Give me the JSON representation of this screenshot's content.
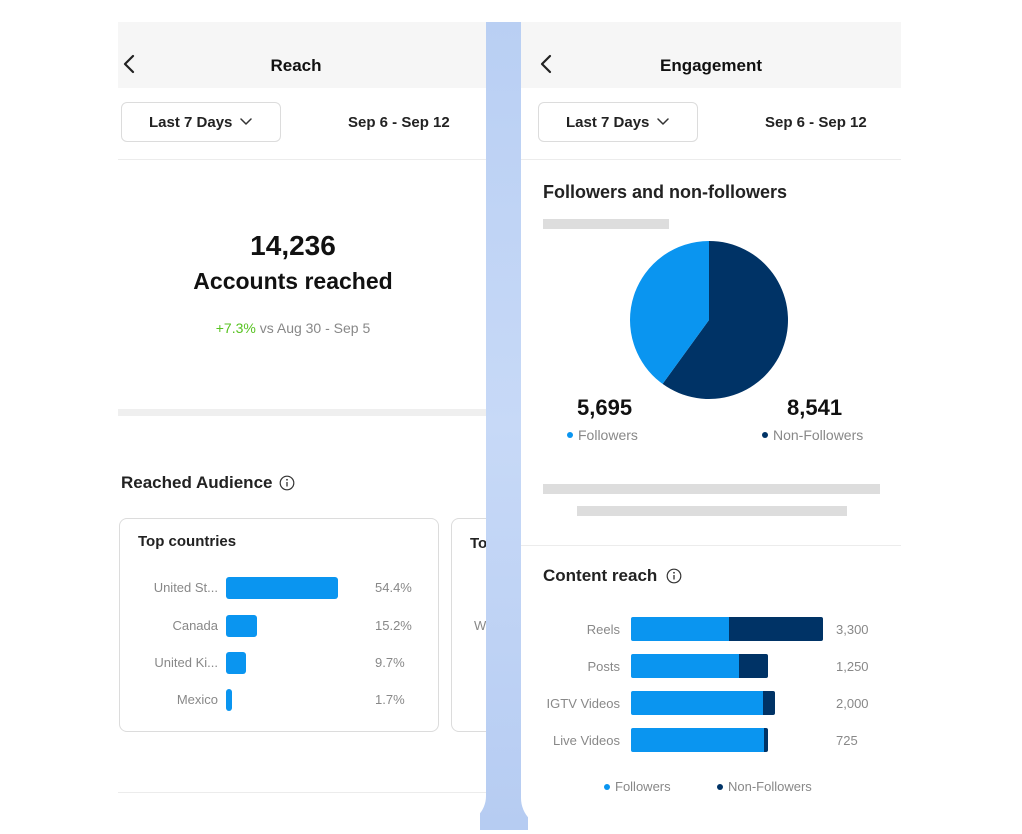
{
  "colors": {
    "followers": "#0a95f0",
    "non_followers": "#003366",
    "positive": "#58c322",
    "header_bg": "#f6f6f6"
  },
  "reach": {
    "title": "Reach",
    "back_icon": "chevron-left-icon",
    "period_dropdown": "Last 7 Days",
    "date_range": "Sep 6 - Sep 12",
    "accounts_reached_value": "14,236",
    "accounts_reached_label": "Accounts reached",
    "change": "+7.3%",
    "change_compare": " vs Aug 30 - Sep 5",
    "audience_title": "Reached Audience",
    "top_countries": {
      "title": "Top countries",
      "rows": [
        {
          "name": "United St...",
          "value": 54.4,
          "label": "54.4%"
        },
        {
          "name": "Canada",
          "value": 15.2,
          "label": "15.2%"
        },
        {
          "name": "United Ki...",
          "value": 9.7,
          "label": "9.7%"
        },
        {
          "name": "Mexico",
          "value": 1.7,
          "label": "1.7%"
        }
      ]
    },
    "second_card": {
      "title_partial": "To",
      "row_partial": "W"
    }
  },
  "engagement": {
    "title": "Engagement",
    "back_icon": "chevron-left-icon",
    "period_dropdown": "Last 7 Days",
    "date_range": "Sep 6 - Sep 12",
    "followers_title": "Followers and non-followers",
    "followers_value": "5,695",
    "followers_label": "Followers",
    "non_followers_value": "8,541",
    "non_followers_label": "Non-Followers",
    "content_reach_title": "Content reach",
    "legend_followers": "Followers",
    "legend_non_followers": "Non-Followers"
  },
  "chart_data": [
    {
      "type": "bar",
      "categories": [
        "United St...",
        "Canada",
        "United Ki...",
        "Mexico"
      ],
      "values": [
        54.4,
        15.2,
        9.7,
        1.7
      ],
      "title": "Top countries",
      "xlabel": "",
      "ylabel": ""
    },
    {
      "type": "pie",
      "categories": [
        "Followers",
        "Non-Followers"
      ],
      "values": [
        5695,
        8541
      ],
      "title": "Followers and non-followers"
    },
    {
      "type": "bar",
      "stacked": true,
      "orientation": "horizontal",
      "title": "Content reach",
      "categories": [
        "Reels",
        "Posts",
        "IGTV Videos",
        "Live Videos"
      ],
      "totals": [
        3300,
        1250,
        2000,
        725
      ],
      "total_labels": [
        "3,300",
        "1,250",
        "2,000",
        "725"
      ],
      "series": [
        {
          "name": "Followers",
          "fraction_of_row": [
            0.51,
            0.79,
            0.92,
            0.97
          ]
        },
        {
          "name": "Non-Followers",
          "fraction_of_row": [
            0.49,
            0.21,
            0.08,
            0.03
          ]
        }
      ],
      "legend": "bottom"
    }
  ]
}
